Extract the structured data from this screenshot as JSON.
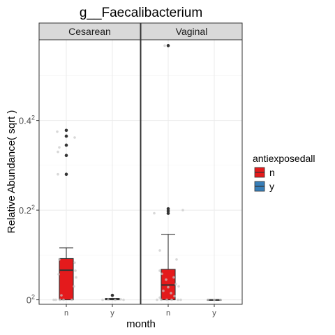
{
  "chart_data": {
    "type": "boxplot",
    "title": "g__Faecalibacterium",
    "xlabel": "month",
    "ylabel": "Relative Abundance( sqrt )",
    "y_scale": "sqrt",
    "y_ticks": [
      {
        "value": 0.0,
        "base": "0",
        "exp": "2"
      },
      {
        "value": 0.2,
        "base": "0.2",
        "exp": "2"
      },
      {
        "value": 0.4,
        "base": "0.4",
        "exp": "2"
      }
    ],
    "ylim": [
      -0.01,
      0.58
    ],
    "grid": true,
    "legend": {
      "title": "antiexposedall",
      "position": "right",
      "entries": [
        {
          "label": "n",
          "color": "#e41a1c"
        },
        {
          "label": "y",
          "color": "#377eb8"
        }
      ]
    },
    "panels": [
      {
        "label": "Cesarean",
        "groups": [
          {
            "category": "n",
            "fill": "#e41a1c",
            "lower_whisker": 0.0,
            "q1": 0.0,
            "median": 0.066,
            "q3": 0.092,
            "upper_whisker": 0.116,
            "outliers": [
              0.378,
              0.365,
              0.345,
              0.322,
              0.28
            ],
            "jitter": [
              [
                -13,
                0.375
              ],
              [
                -10,
                0.34
              ],
              [
                -12,
                0.33
              ],
              [
                -12,
                0.28
              ],
              [
                -18,
                0.0
              ],
              [
                -15,
                0.0
              ],
              [
                -9,
                0.0
              ],
              [
                -4,
                0.0
              ],
              [
                8,
                0.0
              ],
              [
                14,
                0.05
              ],
              [
                12,
                0.083
              ],
              [
                -11,
                0.057
              ],
              [
                11,
                0.03
              ],
              [
                -7,
                0.01
              ],
              [
                13,
                0.065
              ],
              [
                12,
                0.362
              ],
              [
                -10,
                0.09
              ]
            ]
          },
          {
            "category": "y",
            "fill": "#e41a1c",
            "lower_whisker": 0.0,
            "q1": 0.0,
            "median": 0.001,
            "q3": 0.003,
            "upper_whisker": 0.003,
            "outliers": [
              0.01
            ],
            "jitter": [
              [
                -14,
                0.0
              ],
              [
                -6,
                0.001
              ],
              [
                4,
                0.0
              ],
              [
                12,
                0.001
              ],
              [
                16,
                0.0
              ]
            ]
          }
        ]
      },
      {
        "label": "Vaginal",
        "groups": [
          {
            "category": "n",
            "fill": "#e41a1c",
            "lower_whisker": 0.0,
            "q1": 0.0,
            "median": 0.033,
            "q3": 0.068,
            "upper_whisker": 0.146,
            "outliers": [
              0.567,
              0.203,
              0.198,
              0.193
            ],
            "jitter": [
              [
                -5,
                0.567
              ],
              [
                -20,
                0.193
              ],
              [
                21,
                0.2
              ],
              [
                -12,
                0.11
              ],
              [
                12,
                0.09
              ],
              [
                -12,
                0.065
              ],
              [
                -9,
                0.058
              ],
              [
                8,
                0.05
              ],
              [
                -3,
                0.045
              ],
              [
                11,
                0.035
              ],
              [
                -7,
                0.02
              ],
              [
                4,
                0.015
              ],
              [
                -16,
                0.0
              ],
              [
                -10,
                0.0
              ],
              [
                -2,
                0.0
              ],
              [
                5,
                0.0
              ],
              [
                14,
                0.0
              ],
              [
                18,
                0.0
              ],
              [
                -12,
                0.005
              ],
              [
                9,
                0.008
              ],
              [
                0,
                0.028
              ],
              [
                15,
                0.03
              ]
            ]
          },
          {
            "category": "y",
            "fill": "#e41a1c",
            "lower_whisker": 0.0,
            "q1": 0.0,
            "median": 0.0,
            "q3": 0.0,
            "upper_whisker": 0.0,
            "outliers": [],
            "jitter": [
              [
                -9,
                0.0
              ],
              [
                0,
                0.0
              ],
              [
                9,
                0.0
              ]
            ]
          }
        ]
      }
    ]
  }
}
